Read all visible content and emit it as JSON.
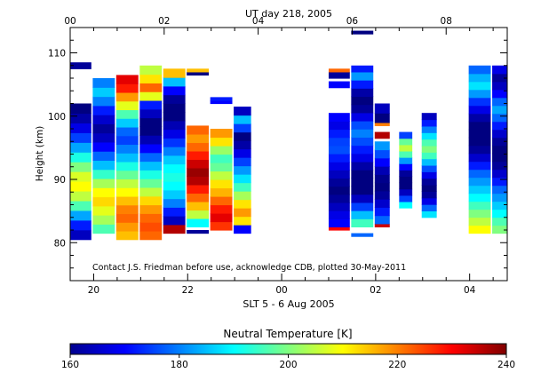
{
  "chart_data": {
    "type": "heatmap",
    "title_top": "UT day 218, 2005",
    "xlabel_bottom": "SLT 5 - 6 Aug 2005",
    "ylabel": "Height (km)",
    "credit": "Contact J.S. Friedman before use, acknowledge CDB, plotted 30-May-2011",
    "top_ticks": [
      "00",
      "02",
      "04",
      "06",
      "08"
    ],
    "top_tick_positions": [
      0,
      2,
      4,
      6,
      8
    ],
    "bottom_ticks": [
      "20",
      "22",
      "00",
      "02",
      "04"
    ],
    "bottom_tick_positions": [
      0.5,
      2.5,
      4.5,
      6.5,
      8.5
    ],
    "x_range_ut_hours": [
      0,
      9.3
    ],
    "ylim": [
      74,
      114
    ],
    "y_ticks": [
      80,
      90,
      100,
      110
    ],
    "colorbar": {
      "label": "Neutral Temperature [K]",
      "range": [
        160,
        240
      ],
      "ticks": [
        "160",
        "180",
        "200",
        "220",
        "240"
      ],
      "tick_values": [
        160,
        180,
        200,
        220,
        240
      ]
    },
    "profiles": [
      {
        "t0": 0.0,
        "t1": 0.45,
        "segments": [
          {
            "h0": 80.5,
            "h1": 102,
            "temps": [
              165,
              172,
              183,
              196,
              205,
              210,
              207,
              200,
              192,
              183,
              175,
              168,
              163,
              160
            ]
          },
          {
            "h0": 107.5,
            "h1": 108.5,
            "temps": [
              162
            ]
          }
        ]
      },
      {
        "t0": 0.48,
        "t1": 0.95,
        "segments": [
          {
            "h0": 81.5,
            "h1": 106,
            "temps": [
              196,
              203,
              208,
              213,
              210,
              203,
              194,
              185,
              178,
              170,
              165,
              162,
              166,
              172,
              180,
              186,
              180
            ]
          }
        ]
      },
      {
        "t0": 0.98,
        "t1": 1.45,
        "segments": [
          {
            "h0": 80.5,
            "h1": 106.5,
            "temps": [
              215,
              218,
              222,
              220,
              215,
              210,
              205,
              198,
              192,
              185,
              180,
              175,
              178,
              186,
              196,
              208,
              218,
              228,
              232
            ]
          }
        ]
      },
      {
        "t0": 1.48,
        "t1": 1.95,
        "segments": [
          {
            "h0": 80.5,
            "h1": 108,
            "temps": [
              222,
              224,
              222,
              218,
              213,
              205,
              198,
              192,
              185,
              178,
              170,
              164,
              160,
              160,
              165,
              172,
              208,
              222,
              212,
              205
            ]
          }
        ]
      },
      {
        "t0": 1.98,
        "t1": 2.45,
        "segments": [
          {
            "h0": 81.5,
            "h1": 107.5,
            "temps": [
              236,
              165,
              172,
              180,
              186,
              190,
              192,
              190,
              186,
              180,
              174,
              168,
              164,
              160,
              160,
              162,
              170,
              185,
              215
            ]
          }
        ]
      },
      {
        "t0": 2.48,
        "t1": 2.95,
        "segments": [
          {
            "h0": 81.5,
            "h1": 82,
            "temps": [
              162
            ]
          },
          {
            "h0": 82.5,
            "h1": 98.5,
            "temps": [
              190,
              205,
              215,
              222,
              228,
              236,
              238,
              234,
              228,
              222,
              218,
              222
            ]
          },
          {
            "h0": 106.5,
            "h1": 107.5,
            "temps": [
              160,
              215
            ]
          }
        ]
      },
      {
        "t0": 2.98,
        "t1": 3.45,
        "segments": [
          {
            "h0": 82,
            "h1": 98,
            "temps": [
              226,
              232,
              228,
              222,
              216,
              212,
              205,
              198,
              195,
              202,
              212,
              218
            ]
          },
          {
            "h0": 102,
            "h1": 103,
            "temps": [
              170,
              172
            ]
          }
        ]
      },
      {
        "t0": 3.48,
        "t1": 3.85,
        "segments": [
          {
            "h0": 81.5,
            "h1": 101.5,
            "temps": [
              170,
              212,
              218,
              212,
              203,
              195,
              188,
              182,
              175,
              168,
              163,
              160,
              175,
              185,
              165
            ]
          }
        ]
      },
      {
        "t0": 5.5,
        "t1": 5.95,
        "segments": [
          {
            "h0": 82,
            "h1": 82.5,
            "temps": [
              230
            ]
          },
          {
            "h0": 82.5,
            "h1": 100.5,
            "temps": [
              170,
              168,
              165,
              162,
              160,
              162,
              165,
              168,
              172,
              176,
              175,
              172,
              168,
              170
            ]
          },
          {
            "h0": 104.5,
            "h1": 105.5,
            "temps": [
              170
            ]
          },
          {
            "h0": 106,
            "h1": 107,
            "temps": [
              162
            ]
          },
          {
            "h0": 107,
            "h1": 107.5,
            "temps": [
              222
            ]
          }
        ]
      },
      {
        "t0": 5.98,
        "t1": 6.45,
        "segments": [
          {
            "h0": 81,
            "h1": 81.5,
            "temps": [
              178
            ]
          },
          {
            "h0": 82.5,
            "h1": 107,
            "temps": [
              195,
              185,
              175,
              165,
              160,
              160,
              160,
              163,
              168,
              172,
              176,
              180,
              176,
              168,
              162,
              160,
              163,
              172,
              182
            ]
          },
          {
            "h0": 107,
            "h1": 108,
            "temps": [
              172
            ]
          },
          {
            "h0": 113,
            "h1": 113.5,
            "temps": [
              160
            ]
          }
        ]
      },
      {
        "t0": 6.48,
        "t1": 6.8,
        "segments": [
          {
            "h0": 82.5,
            "h1": 83,
            "temps": [
              234
            ]
          },
          {
            "h0": 83,
            "h1": 96,
            "temps": [
              178,
              172,
              166,
              162,
              160,
              161,
              164,
              170,
              176,
              182
            ]
          },
          {
            "h0": 96.5,
            "h1": 97.5,
            "temps": [
              236
            ]
          },
          {
            "h0": 98.5,
            "h1": 99,
            "temps": [
              220
            ]
          },
          {
            "h0": 99,
            "h1": 102,
            "temps": [
              160,
              165
            ]
          }
        ]
      },
      {
        "t0": 7.0,
        "t1": 7.28,
        "segments": [
          {
            "h0": 85.5,
            "h1": 97.5,
            "temps": [
              190,
              175,
              165,
              160,
              160,
              162,
              170,
              182,
              196,
              205,
              198,
              175
            ]
          }
        ]
      },
      {
        "t0": 7.48,
        "t1": 7.8,
        "segments": [
          {
            "h0": 84,
            "h1": 100.5,
            "temps": [
              188,
              178,
              168,
              162,
              160,
              162,
              168,
              176,
              185,
              195,
              200,
              196,
              188,
              180,
              172,
              165
            ]
          }
        ]
      },
      {
        "t0": 8.48,
        "t1": 8.95,
        "segments": [
          {
            "h0": 81.5,
            "h1": 108,
            "temps": [
              210,
              205,
              200,
              195,
              190,
              186,
              182,
              178,
              172,
              166,
              162,
              160,
              160,
              160,
              163,
              168,
              174,
              182,
              188,
              184,
              178
            ]
          }
        ]
      },
      {
        "t0": 8.98,
        "t1": 9.3,
        "segments": [
          {
            "h0": 81.5,
            "h1": 108,
            "temps": [
              200,
              196,
              190,
              186,
              182,
              178,
              172,
              166,
              162,
              160,
              160,
              162,
              166,
              172,
              178,
              183,
              178,
              170,
              165,
              162,
              168
            ]
          }
        ]
      }
    ]
  }
}
